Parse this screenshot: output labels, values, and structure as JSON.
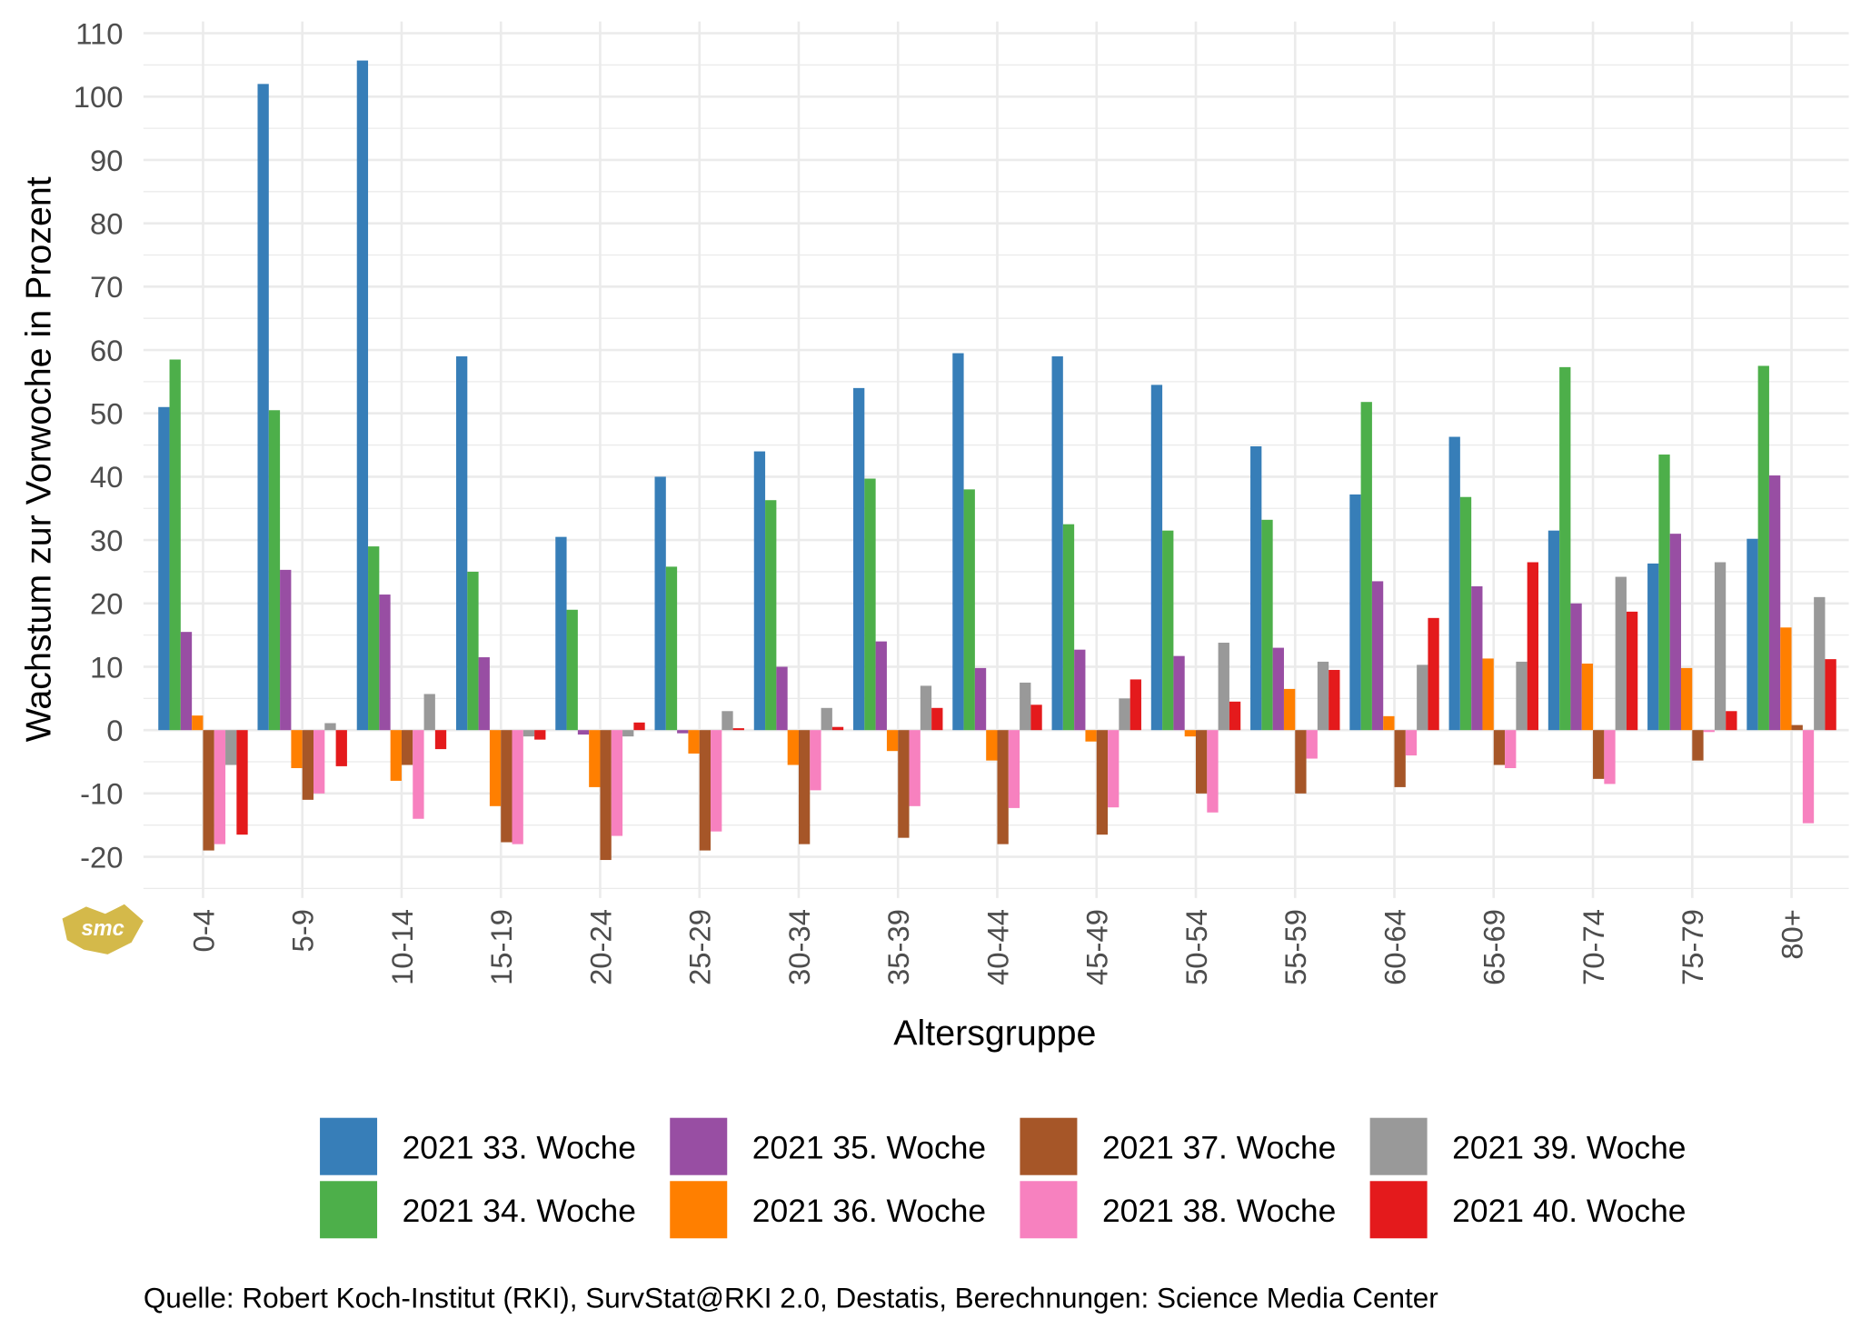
{
  "chart_data": {
    "type": "bar",
    "xlabel": "Altersgruppe",
    "ylabel": "Wachstum zur Vorwoche in Prozent",
    "ylim": [
      -25,
      110
    ],
    "yticks": [
      -20,
      -10,
      0,
      10,
      20,
      30,
      40,
      50,
      60,
      70,
      80,
      90,
      100,
      110
    ],
    "grid": true,
    "legend_position": "bottom",
    "categories": [
      "0-4",
      "5-9",
      "10-14",
      "15-19",
      "20-24",
      "25-29",
      "30-34",
      "35-39",
      "40-44",
      "45-49",
      "50-54",
      "55-59",
      "60-64",
      "65-69",
      "70-74",
      "75-79",
      "80+"
    ],
    "series": [
      {
        "name": "2021 33. Woche",
        "color": "#377EB8",
        "values": [
          51,
          102,
          105.7,
          59,
          30.5,
          40,
          44,
          54,
          59.5,
          59,
          54.5,
          44.8,
          37.2,
          46.3,
          31.5,
          26.3,
          30.2
        ]
      },
      {
        "name": "2021 34. Woche",
        "color": "#4DAF4A",
        "values": [
          58.5,
          50.5,
          29,
          25,
          19,
          25.8,
          36.3,
          39.7,
          38,
          32.5,
          31.5,
          33.2,
          51.8,
          36.8,
          57.3,
          43.5,
          57.5
        ]
      },
      {
        "name": "2021 35. Woche",
        "color": "#984EA3",
        "values": [
          15.5,
          25.3,
          21.4,
          11.5,
          -0.7,
          -0.5,
          10,
          14,
          9.8,
          12.7,
          11.7,
          13,
          23.5,
          22.7,
          20,
          31,
          40.2
        ]
      },
      {
        "name": "2021 36. Woche",
        "color": "#FF7F00",
        "values": [
          2.3,
          -6,
          -8,
          -12,
          -9,
          -3.7,
          -5.5,
          -3.3,
          -4.8,
          -1.8,
          -1,
          6.5,
          2.2,
          11.3,
          10.5,
          9.8,
          16.2
        ]
      },
      {
        "name": "2021 37. Woche",
        "color": "#A65628",
        "values": [
          -19,
          -11,
          -5.5,
          -17.7,
          -20.5,
          -19,
          -18,
          -17,
          -18,
          -16.5,
          -10,
          -10,
          -9,
          -5.5,
          -7.7,
          -4.8,
          0.8
        ]
      },
      {
        "name": "2021 38. Woche",
        "color": "#F781BF",
        "values": [
          -18,
          -10,
          -14,
          -18,
          -16.7,
          -16,
          -9.5,
          -12,
          -12.3,
          -12.2,
          -13,
          -4.5,
          -4,
          -6,
          -8.5,
          -0.3,
          -14.7
        ]
      },
      {
        "name": "2021 39. Woche",
        "color": "#999999",
        "values": [
          -5.5,
          1.1,
          5.7,
          -1,
          -1,
          3,
          3.5,
          7,
          7.5,
          5,
          13.8,
          10.8,
          10.3,
          10.8,
          24.2,
          26.5,
          21
        ]
      },
      {
        "name": "2021 40. Woche",
        "color": "#E41A1C",
        "values": [
          -16.5,
          -5.7,
          -3,
          -1.5,
          1.2,
          0.3,
          0.5,
          3.5,
          4,
          8,
          4.5,
          9.5,
          17.7,
          26.5,
          18.7,
          3,
          11.2
        ]
      }
    ]
  },
  "caption": "Quelle: Robert Koch-Institut (RKI), SurvStat@RKI 2.0, Destatis, Berechnungen: Science Media Center",
  "logo": {
    "text": "smc",
    "color": "#D4B94A"
  }
}
